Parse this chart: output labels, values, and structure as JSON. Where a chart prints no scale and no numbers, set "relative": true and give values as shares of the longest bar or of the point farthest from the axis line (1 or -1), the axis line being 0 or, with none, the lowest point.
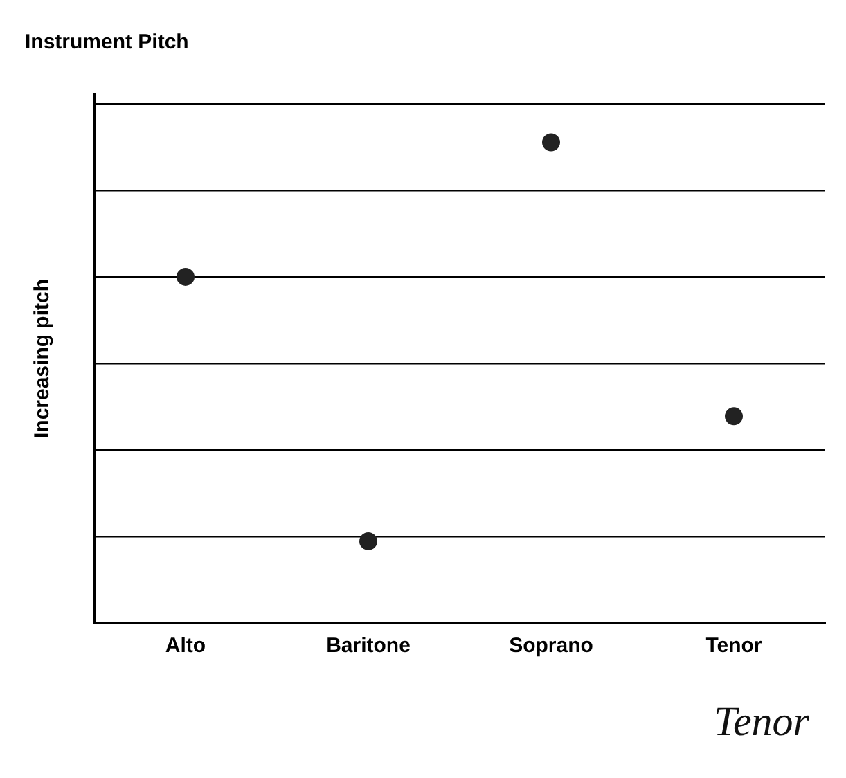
{
  "chart_data": {
    "type": "scatter",
    "title": "Instrument Pitch",
    "ylabel": "Increasing pitch",
    "categories": [
      "Alto",
      "Baritone",
      "Soprano",
      "Tenor"
    ],
    "values": [
      0.72,
      0.17,
      1,
      0.43
    ],
    "color": "#222222",
    "relative": true,
    "grid": "y",
    "marker": "circle",
    "legend": false,
    "annotations": [
      "Tenor"
    ]
  }
}
